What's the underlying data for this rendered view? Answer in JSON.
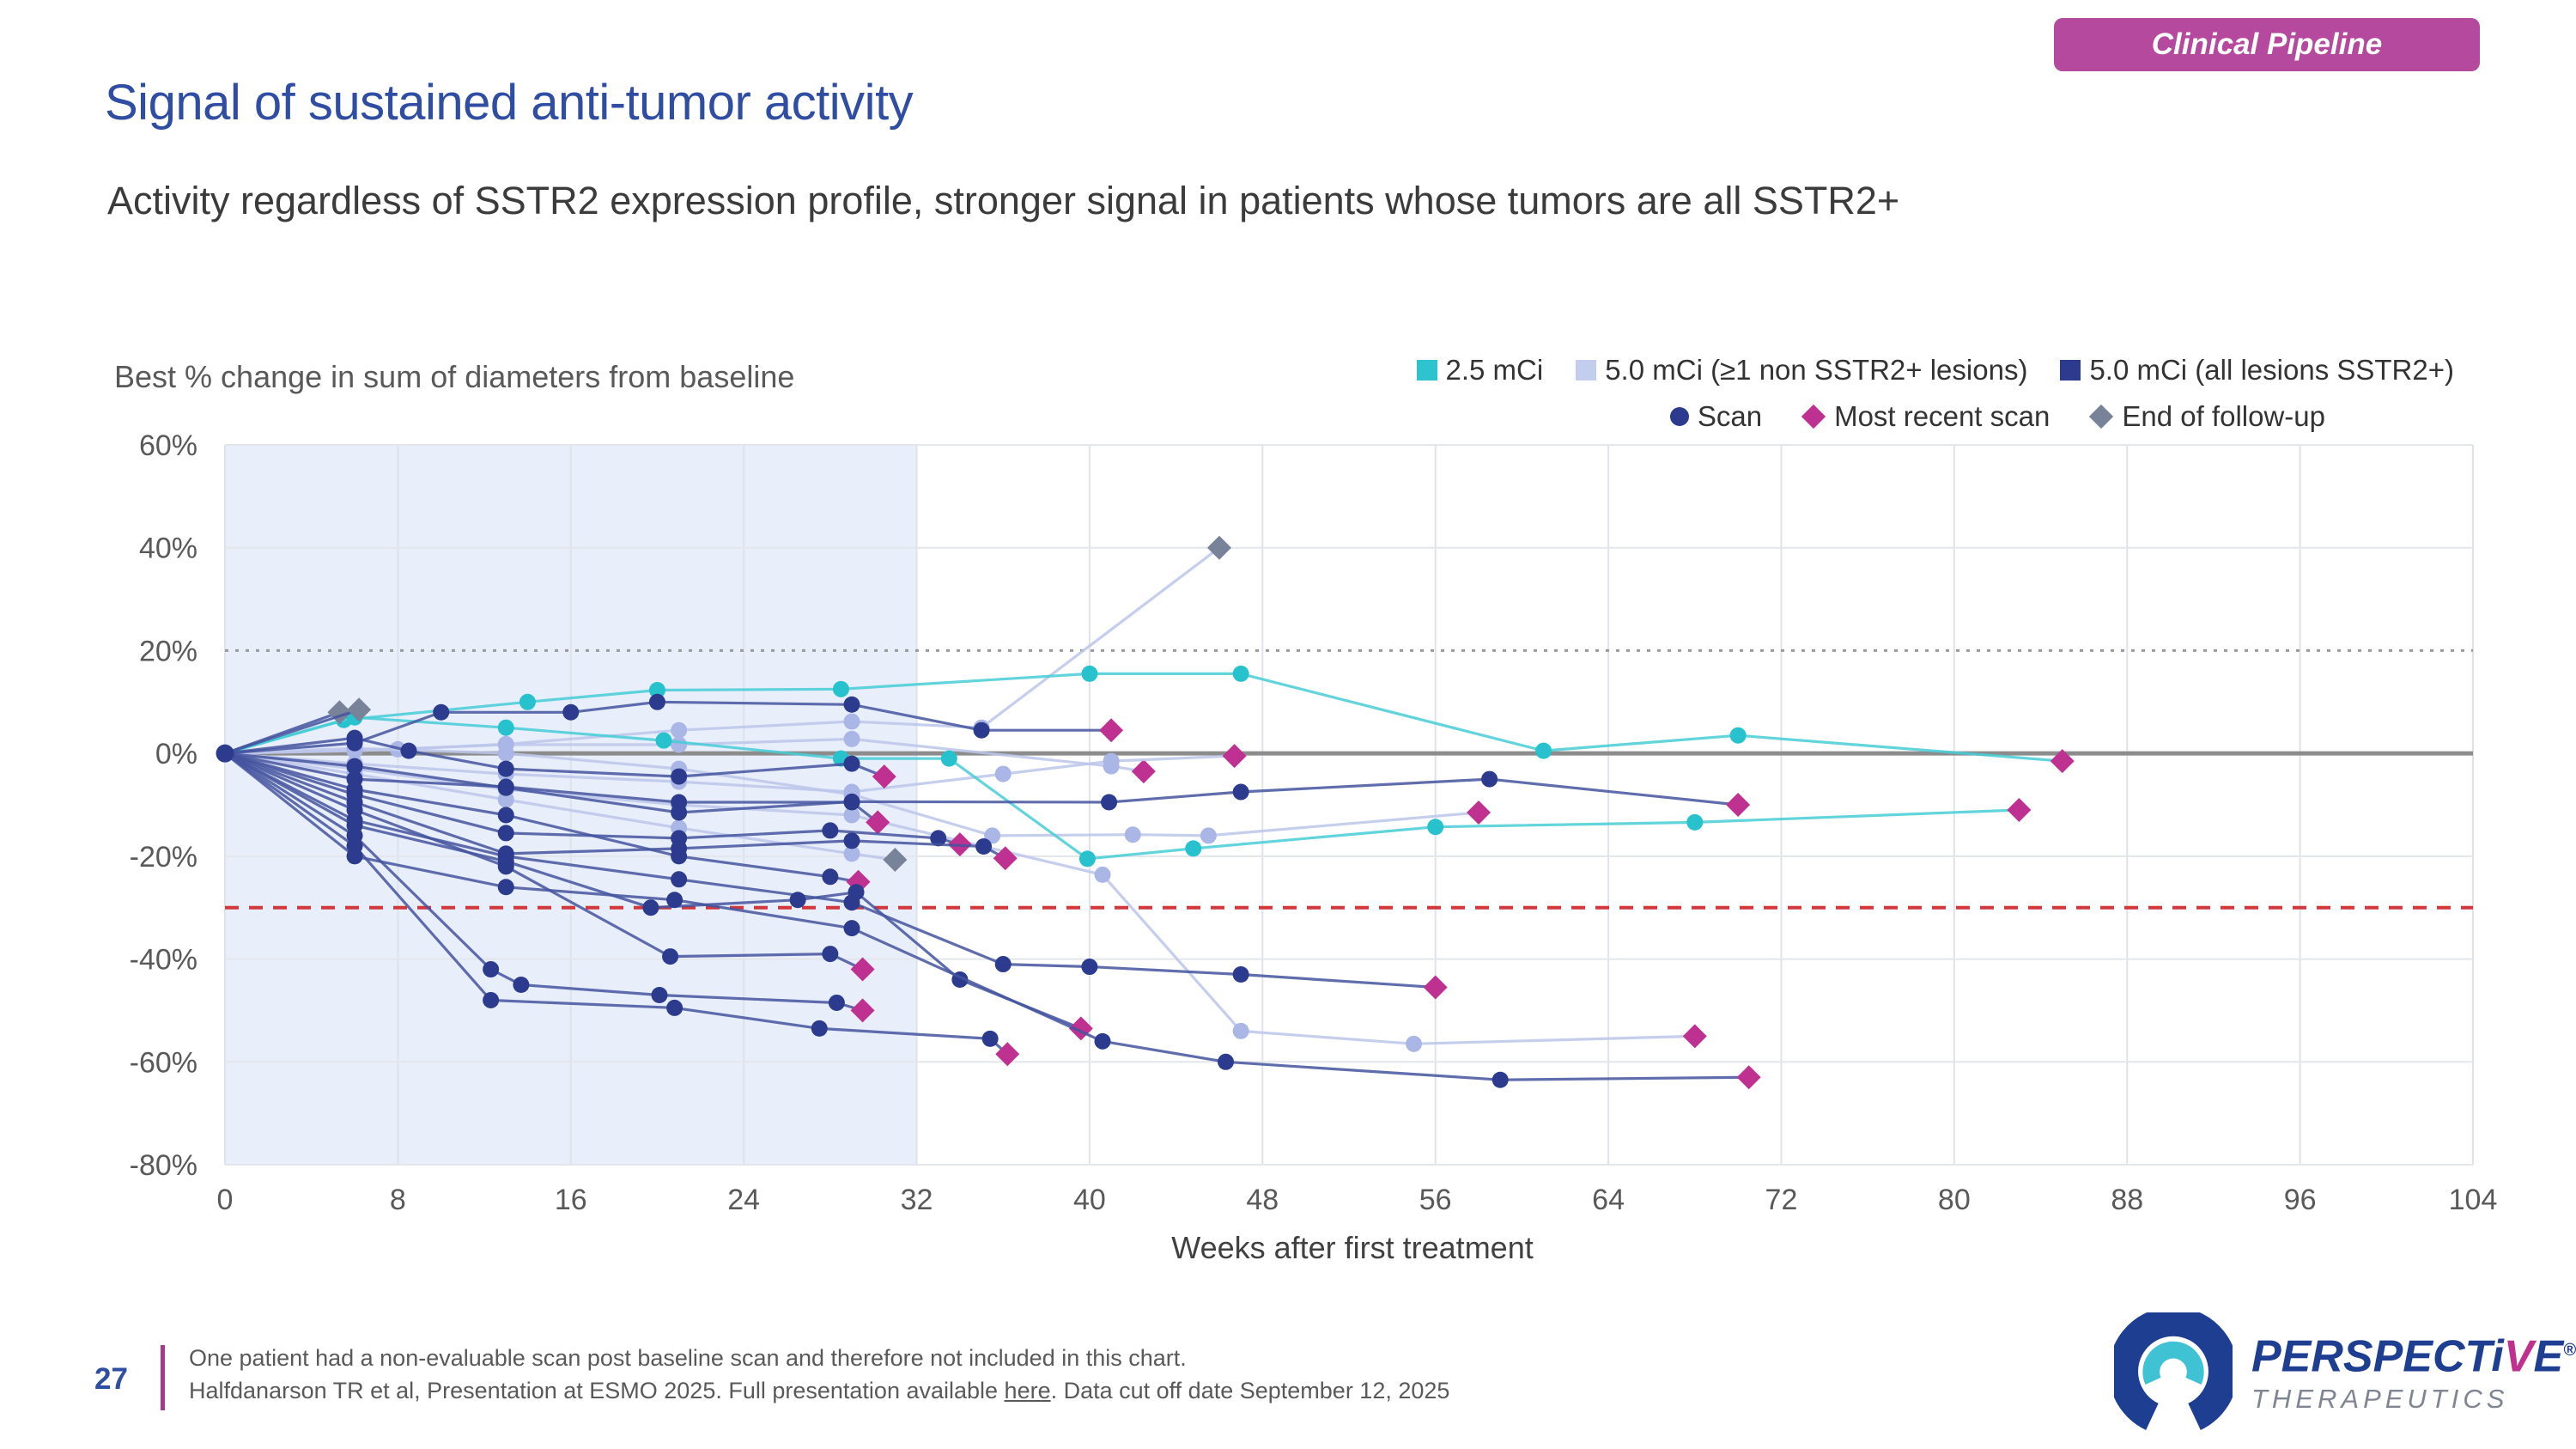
{
  "badge": {
    "label": "Clinical Pipeline",
    "bg": "#b5499e"
  },
  "header": {
    "title": "Signal of sustained anti-tumor activity",
    "subtitle": "Activity regardless of SSTR2 expression profile, stronger signal in patients whose tumors are all SSTR2+"
  },
  "chart": {
    "axis_title": "Best % change in sum of diameters from baseline",
    "x_label": "Weeks after first treatment",
    "legend_groups": [
      {
        "key": "2.5",
        "label": "2.5 mCi",
        "color": "#2fc3cf"
      },
      {
        "key": "5.0-mixed",
        "label": "5.0 mCi (≥1 non SSTR2+ lesions)",
        "color": "#c3cdee"
      },
      {
        "key": "5.0-all",
        "label": "5.0 mCi (all lesions SSTR2+)",
        "color": "#2c3b8e"
      }
    ],
    "legend_markers": [
      {
        "key": "scan",
        "label": "Scan",
        "shape": "circle",
        "color": "#2c3b8e"
      },
      {
        "key": "most_recent_scan",
        "label": "Most recent scan",
        "shape": "diamond",
        "color": "#bf3191"
      },
      {
        "key": "end_of_follow_up",
        "label": "End of follow-up",
        "shape": "diamond",
        "color": "#788299"
      }
    ]
  },
  "chart_data": {
    "type": "line",
    "title": "Best % change in sum of diameters from baseline",
    "xlabel": "Weeks after first treatment",
    "xlim": [
      0,
      104
    ],
    "ylim": [
      -80,
      60
    ],
    "x_ticks": [
      0,
      8,
      16,
      24,
      32,
      40,
      48,
      56,
      64,
      72,
      80,
      88,
      96,
      104
    ],
    "y_ticks": [
      60,
      40,
      20,
      0,
      -20,
      -40,
      -60,
      -80
    ],
    "y_tick_labels": [
      "60%",
      "40%",
      "20%",
      "0%",
      "-20%",
      "-40%",
      "-60%",
      "-80%"
    ],
    "grid": true,
    "shaded_region_weeks": [
      0,
      32
    ],
    "shaded_region_color": "#e8eefa",
    "reference_lines": [
      {
        "y": 20,
        "style": "dotted",
        "color": "#9a9a9a",
        "width": 3
      },
      {
        "y": 0,
        "style": "solid",
        "color": "#8c8c8c",
        "width": 5
      },
      {
        "y": -30,
        "style": "dashed",
        "color": "#d2373c",
        "width": 4
      }
    ],
    "group_styles": {
      "2.5": {
        "line": "#45ccd6",
        "dot": "#27c2ce"
      },
      "5.0-mixed": {
        "line": "#bcc6ea",
        "dot": "#a9b6e6"
      },
      "5.0-all": {
        "line": "#44539f",
        "dot": "#2c3b8e"
      }
    },
    "end_marker_colors": {
      "most_recent_scan": "#bf3191",
      "end_of_follow_up": "#788299"
    },
    "layer_order": [
      "5.0-mixed",
      "2.5",
      "5.0-all"
    ],
    "series": [
      {
        "group": "5.0-mixed",
        "end": "end_of_follow_up",
        "points": [
          [
            0,
            0
          ],
          [
            8,
            0.8
          ],
          [
            13,
            1.8
          ],
          [
            21,
            4.5
          ],
          [
            29,
            6.2
          ],
          [
            35,
            5
          ],
          [
            46,
            40
          ]
        ]
      },
      {
        "group": "5.0-mixed",
        "end": "most_recent_scan",
        "points": [
          [
            0,
            0
          ],
          [
            6,
            0.5
          ],
          [
            13,
            1.7
          ],
          [
            21,
            1.7
          ],
          [
            29,
            2.8
          ],
          [
            41,
            -2.5
          ],
          [
            42.5,
            -3.5
          ]
        ]
      },
      {
        "group": "5.0-mixed",
        "end": "most_recent_scan",
        "points": [
          [
            0,
            0
          ],
          [
            6,
            -2
          ],
          [
            13,
            -4
          ],
          [
            21,
            -5.5
          ],
          [
            29,
            -7.5
          ],
          [
            36,
            -4
          ],
          [
            41,
            -1.5
          ],
          [
            46.7,
            -0.5
          ]
        ]
      },
      {
        "group": "5.0-mixed",
        "end": "most_recent_scan",
        "points": [
          [
            0,
            0
          ],
          [
            6,
            -3
          ],
          [
            13,
            -7
          ],
          [
            21,
            -10
          ],
          [
            29,
            -12
          ],
          [
            40.6,
            -23.6
          ],
          [
            47,
            -54
          ],
          [
            55,
            -56.5
          ],
          [
            68,
            -55
          ]
        ]
      },
      {
        "group": "5.0-mixed",
        "end": "most_recent_scan",
        "points": [
          [
            0,
            0
          ],
          [
            6,
            1
          ],
          [
            13,
            0
          ],
          [
            21,
            -3
          ],
          [
            29,
            -8
          ],
          [
            35.5,
            -16
          ],
          [
            42,
            -15.8
          ],
          [
            45.5,
            -16
          ],
          [
            58,
            -11.5
          ]
        ]
      },
      {
        "group": "5.0-mixed",
        "end": "end_of_follow_up",
        "points": [
          [
            0,
            0
          ],
          [
            6,
            -4
          ],
          [
            13,
            -9
          ],
          [
            21,
            -14.5
          ],
          [
            29,
            -19.5
          ],
          [
            31,
            -20.7
          ]
        ]
      },
      {
        "group": "2.5",
        "end": "most_recent_scan",
        "points": [
          [
            0,
            0
          ],
          [
            5.5,
            6.5
          ],
          [
            14,
            10
          ],
          [
            20,
            12.3
          ],
          [
            28.5,
            12.5
          ],
          [
            40,
            15.5
          ],
          [
            47,
            15.5
          ],
          [
            61,
            0.5
          ],
          [
            70,
            3.5
          ],
          [
            85,
            -1.5
          ]
        ]
      },
      {
        "group": "2.5",
        "end": "most_recent_scan",
        "points": [
          [
            0,
            0
          ],
          [
            6,
            7
          ],
          [
            13,
            5
          ],
          [
            20.3,
            2.5
          ],
          [
            28.5,
            -1
          ],
          [
            33.5,
            -1
          ],
          [
            39.9,
            -20.5
          ],
          [
            44.8,
            -18.5
          ],
          [
            56,
            -14.3
          ],
          [
            68,
            -13.4
          ],
          [
            83,
            -11
          ]
        ]
      },
      {
        "group": "5.0-all",
        "end": "end_of_follow_up",
        "points": [
          [
            0,
            0
          ],
          [
            5.3,
            8
          ]
        ]
      },
      {
        "group": "5.0-all",
        "end": "end_of_follow_up",
        "points": [
          [
            0,
            0
          ],
          [
            6.2,
            8.5
          ]
        ]
      },
      {
        "group": "5.0-all",
        "end": "most_recent_scan",
        "points": [
          [
            0,
            0
          ],
          [
            6,
            2
          ],
          [
            10,
            8
          ],
          [
            16,
            8
          ],
          [
            20,
            10
          ],
          [
            29,
            9.5
          ],
          [
            35,
            4.5
          ],
          [
            41,
            4.5
          ]
        ]
      },
      {
        "group": "5.0-all",
        "end": "most_recent_scan",
        "points": [
          [
            0,
            0
          ],
          [
            6,
            3
          ],
          [
            8.5,
            0.5
          ],
          [
            13,
            -3
          ],
          [
            21,
            -4.5
          ],
          [
            29,
            -2
          ],
          [
            30.5,
            -4.5
          ]
        ]
      },
      {
        "group": "5.0-all",
        "end": "most_recent_scan",
        "points": [
          [
            0,
            0
          ],
          [
            6,
            -5
          ],
          [
            13,
            -6.5
          ],
          [
            21,
            -9.5
          ],
          [
            29,
            -9.5
          ],
          [
            30.2,
            -13.4
          ]
        ]
      },
      {
        "group": "5.0-all",
        "end": "most_recent_scan",
        "points": [
          [
            0,
            0
          ],
          [
            6,
            -8
          ],
          [
            13,
            -15.5
          ],
          [
            21,
            -16.5
          ],
          [
            28,
            -15
          ],
          [
            33,
            -16.5
          ],
          [
            34,
            -17.7
          ]
        ]
      },
      {
        "group": "5.0-all",
        "end": "most_recent_scan",
        "points": [
          [
            0,
            0
          ],
          [
            6,
            -9.5
          ],
          [
            13,
            -19.5
          ],
          [
            21,
            -18.5
          ],
          [
            29,
            -17
          ],
          [
            35.1,
            -18.1
          ],
          [
            36.1,
            -20.4
          ]
        ]
      },
      {
        "group": "5.0-all",
        "end": "most_recent_scan",
        "points": [
          [
            0,
            0
          ],
          [
            6,
            -7
          ],
          [
            13,
            -12
          ],
          [
            21,
            -20
          ],
          [
            28,
            -24
          ],
          [
            29.3,
            -25
          ]
        ]
      },
      {
        "group": "5.0-all",
        "end": "most_recent_scan",
        "points": [
          [
            0,
            0
          ],
          [
            6,
            -2.5
          ],
          [
            13,
            -6.7
          ],
          [
            21,
            -11.5
          ],
          [
            29,
            -9.4
          ],
          [
            40.9,
            -9.5
          ],
          [
            47,
            -7.5
          ],
          [
            58.5,
            -5
          ],
          [
            70,
            -10
          ]
        ]
      },
      {
        "group": "5.0-all",
        "end": "most_recent_scan",
        "points": [
          [
            0,
            0
          ],
          [
            6,
            -13
          ],
          [
            13,
            -20
          ],
          [
            21,
            -24.5
          ],
          [
            29,
            -29
          ],
          [
            36,
            -41
          ],
          [
            40,
            -41.5
          ],
          [
            47,
            -43
          ],
          [
            56,
            -45.5
          ]
        ]
      },
      {
        "group": "5.0-all",
        "end": "most_recent_scan",
        "points": [
          [
            0,
            0
          ],
          [
            6,
            -11
          ],
          [
            13,
            -22
          ],
          [
            20.6,
            -39.5
          ],
          [
            28,
            -39
          ],
          [
            29.5,
            -42
          ]
        ]
      },
      {
        "group": "5.0-all",
        "end": "most_recent_scan",
        "points": [
          [
            0,
            0
          ],
          [
            6,
            -14
          ],
          [
            13,
            -21
          ],
          [
            19.7,
            -30
          ],
          [
            26.5,
            -28.5
          ],
          [
            29.2,
            -27
          ],
          [
            34,
            -44
          ],
          [
            39.6,
            -53.5
          ]
        ]
      },
      {
        "group": "5.0-all",
        "end": "most_recent_scan",
        "points": [
          [
            0,
            0
          ],
          [
            6,
            -16
          ],
          [
            12.3,
            -42
          ],
          [
            13.7,
            -45
          ],
          [
            20.1,
            -47
          ],
          [
            28.3,
            -48.5
          ],
          [
            29.5,
            -50
          ]
        ]
      },
      {
        "group": "5.0-all",
        "end": "most_recent_scan",
        "points": [
          [
            0,
            0
          ],
          [
            6,
            -18
          ],
          [
            12.3,
            -48
          ],
          [
            20.8,
            -49.5
          ],
          [
            27.5,
            -53.5
          ],
          [
            35.4,
            -55.5
          ],
          [
            36.2,
            -58.5
          ]
        ]
      },
      {
        "group": "5.0-all",
        "end": "most_recent_scan",
        "points": [
          [
            0,
            0
          ],
          [
            6,
            -20
          ],
          [
            13,
            -26
          ],
          [
            20.8,
            -28.5
          ],
          [
            29,
            -34
          ],
          [
            40.6,
            -56
          ],
          [
            46.3,
            -60
          ],
          [
            59,
            -63.5
          ],
          [
            70.5,
            -63
          ]
        ]
      }
    ]
  },
  "footer": {
    "page_number": "27",
    "note_line_1": "One patient had a non-evaluable scan post baseline scan and therefore not included in this chart.",
    "note_line_2_pre": "Halfdanarson TR et al, Presentation at ESMO 2025. Full presentation available ",
    "note_line_2_link": "here",
    "note_line_2_post": ". Data cut off date September 12, 2025"
  },
  "logo": {
    "word_part_1": "PERSPECT",
    "word_part_i": "i",
    "word_part_v": "V",
    "word_part_e": "E",
    "registered": "®",
    "subtext": "THERAPEUTICS",
    "navy": "#1e3e92",
    "teal": "#3fc3d4",
    "magenta": "#c0308f"
  }
}
